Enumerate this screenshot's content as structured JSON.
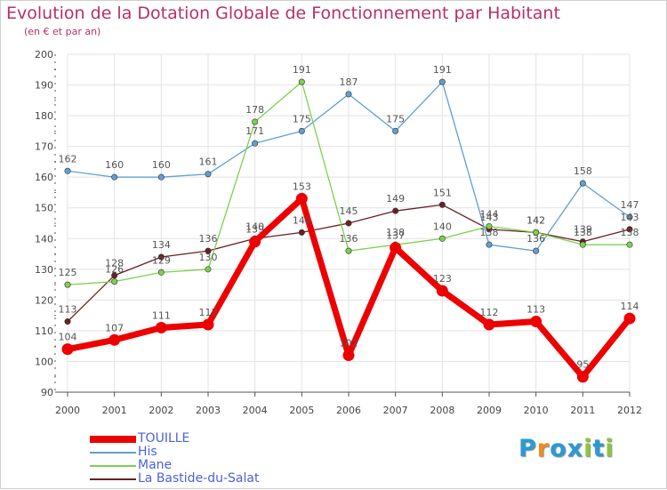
{
  "title": "Evolution de la Dotation Globale de Fonctionnement par Habitant",
  "subtitle": "(en € et par an)",
  "logo": {
    "text": "Proxiti",
    "letters": [
      "P",
      "r",
      "o",
      "x",
      "i",
      "t",
      "i"
    ],
    "colors": [
      "#2a9ad6",
      "#f28c1e",
      "#2a9ad6",
      "#2a9ad6",
      "#8cc63f",
      "#2a9ad6",
      "#8cc63f"
    ]
  },
  "chart_data": {
    "type": "line",
    "title": "Evolution de la Dotation Globale de Fonctionnement par Habitant",
    "xlabel": "",
    "ylabel": "(en € et par an)",
    "ylim": [
      90,
      200
    ],
    "yticks": [
      90,
      100,
      110,
      120,
      130,
      140,
      150,
      160,
      170,
      180,
      190,
      200
    ],
    "categories": [
      "2000",
      "2001",
      "2002",
      "2003",
      "2004",
      "2005",
      "2006",
      "2007",
      "2008",
      "2009",
      "2010",
      "2011",
      "2012"
    ],
    "grid": true,
    "legend": "bottom-left",
    "series": [
      {
        "name": "TOUILLE",
        "color": "#ee0000",
        "values": [
          104,
          107,
          111,
          112,
          139,
          153,
          102,
          137,
          123,
          112,
          113,
          95,
          114
        ],
        "labels": [
          "104",
          "107",
          "111",
          "112",
          "139",
          "153",
          "102",
          "137",
          "123",
          "112",
          "113",
          "95",
          "114"
        ]
      },
      {
        "name": "His",
        "color": "#5f9fd3",
        "values": [
          162,
          160,
          160,
          161,
          171,
          175,
          187,
          175,
          191,
          138,
          136,
          158,
          147
        ],
        "labels": [
          "162",
          "160",
          "160",
          "161",
          "171",
          "175",
          "187",
          "175",
          "191",
          "138",
          "136",
          "158",
          "147"
        ]
      },
      {
        "name": "Mane",
        "color": "#7ed04e",
        "values": [
          125,
          126,
          129,
          130,
          178,
          191,
          136,
          138,
          140,
          144,
          142,
          138,
          138
        ],
        "labels": [
          "125",
          "126",
          "129",
          "130",
          "178",
          "191",
          "136",
          "138",
          "140",
          "144",
          "142",
          "138",
          "138"
        ]
      },
      {
        "name": "La Bastide-du-Salat",
        "color": "#6b1f20",
        "values": [
          113,
          128,
          134,
          136,
          140,
          142,
          145,
          149,
          151,
          143,
          142,
          139,
          143
        ],
        "labels": [
          "113",
          "128",
          "134",
          "136",
          "140",
          "142",
          "145",
          "149",
          "151",
          "143",
          "142",
          "139",
          "143"
        ]
      }
    ]
  }
}
